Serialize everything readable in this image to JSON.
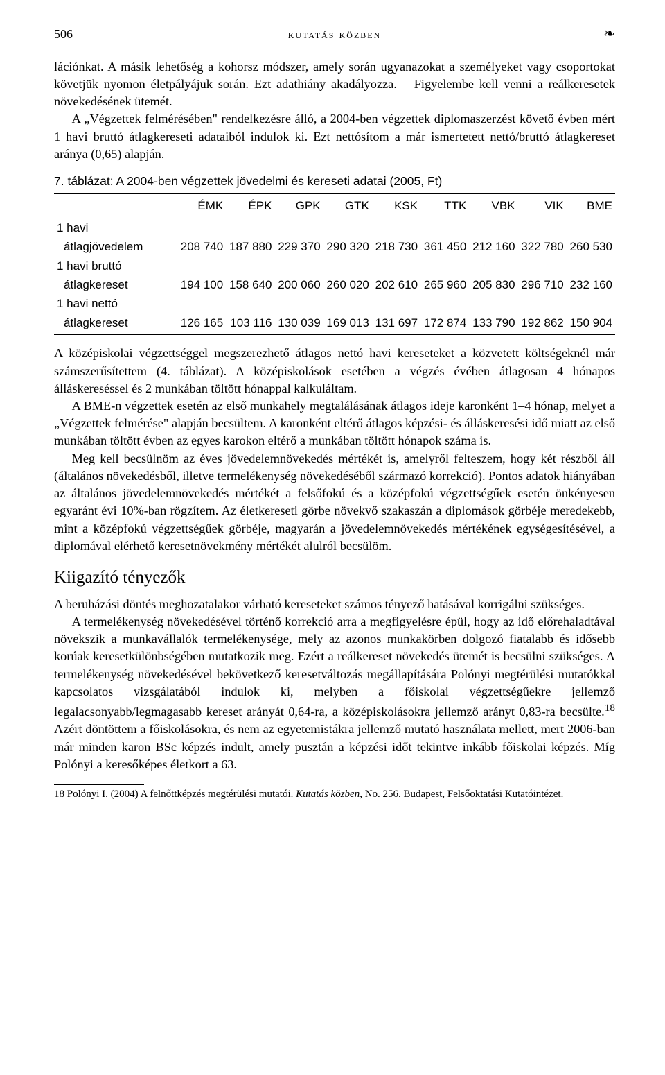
{
  "header": {
    "page_number": "506",
    "running_head": "kutatás közben",
    "ornament": "❧"
  },
  "para1": "lációnkat. A másik lehetőség a kohorsz módszer, amely során ugyanazokat a személyeket vagy csoportokat követjük nyomon életpályájuk során. Ezt adathiány akadályozza. – Figyelembe kell venni a reálkeresetek növekedésének ütemét.",
  "para2": "A „Végzettek felmérésében\" rendelkezésre álló, a 2004-ben végzettek diplomaszerzést követő évben mért 1 havi bruttó átlagkereseti adataiból indulok ki. Ezt nettósítom a már ismertetett nettó/bruttó átlagkereset aránya (0,65) alapján.",
  "table": {
    "caption": "7. táblázat: A 2004-ben végzettek jövedelmi és kereseti adatai (2005, Ft)",
    "columns": [
      "",
      "ÉMK",
      "ÉPK",
      "GPK",
      "GTK",
      "KSK",
      "TTK",
      "VBK",
      "VIK",
      "BME"
    ],
    "rows": [
      {
        "label_top": "1 havi",
        "label_sub": "átlagjövedelem",
        "cells": [
          "208 740",
          "187 880",
          "229 370",
          "290 320",
          "218 730",
          "361 450",
          "212 160",
          "322 780",
          "260 530"
        ]
      },
      {
        "label_top": "1 havi bruttó",
        "label_sub": "átlagkereset",
        "cells": [
          "194 100",
          "158 640",
          "200 060",
          "260 020",
          "202 610",
          "265 960",
          "205 830",
          "296 710",
          "232 160"
        ]
      },
      {
        "label_top": "1 havi nettó",
        "label_sub": "átlagkereset",
        "cells": [
          "126 165",
          "103 116",
          "130 039",
          "169 013",
          "131 697",
          "172 874",
          "133 790",
          "192 862",
          "150 904"
        ]
      }
    ]
  },
  "para3": "A középiskolai végzettséggel megszerezhető átlagos nettó havi kereseteket a közvetett költségeknél már számszerűsítettem (4. táblázat). A középiskolások esetében a végzés évében átlagosan 4 hónapos álláskereséssel és 2 munkában töltött hónappal kalkuláltam.",
  "para4": "A BME-n végzettek esetén az első munkahely megtalálásának átlagos ideje karonként 1–4 hónap, melyet a „Végzettek felmérése\" alapján becsültem. A karonként eltérő átlagos képzési- és álláskeresési idő miatt az első munkában töltött évben az egyes karokon eltérő a munkában töltött hónapok száma is.",
  "para5": "Meg kell becsülnöm az éves jövedelemnövekedés mértékét is, amelyről felteszem, hogy két részből áll (általános növekedésből, illetve termelékenység növekedéséből származó korrekció). Pontos adatok hiányában az általános jövedelemnövekedés mértékét a felsőfokú és a középfokú végzettségűek esetén önkényesen egyaránt évi 10%-ban rögzítem. Az életkereseti görbe növekvő szakaszán a diplomások görbéje meredekebb, mint a középfokú végzettségűek görbéje, magyarán a jövedelemnövekedés mértékének egységesítésével, a diplomával elérhető keresetnövekmény mértékét alulról becsülöm.",
  "section_heading": "Kiigazító tényezők",
  "para6": "A beruházási döntés meghozatalakor várható kereseteket számos tényező hatásával korrigálni szükséges.",
  "para7_html": "A termelékenység növekedésével történő korrekció arra a megfigyelésre épül, hogy az idő előrehaladtával növekszik a munkavállalók termelékenysége, mely az azonos munkakörben dolgozó fiatalabb és idősebb korúak keresetkülönbségében mutatkozik meg. Ezért a reálkereset növekedés ütemét is becsülni szükséges. A termelékenység növekedésével bekövetkező keresetváltozás megállapítására Polónyi megtérülési mutatókkal kapcsolatos vizsgálatából indulok ki, melyben a főiskolai végzettségűekre jellemző legalacsonyabb/legmagasabb kereset arányát 0,64-ra, a középiskolásokra jellemző arányt 0,83-ra becsülte.",
  "footnote_marker": "18",
  "para7_tail": " Azért döntöttem a főiskolásokra, és nem az egyetemistákra jellemző mutató használata mellett, mert 2006-ban már minden karon BSc képzés indult, amely pusztán a képzési időt tekintve inkább főiskolai képzés. Míg Polónyi a keresőképes életkort a 63.",
  "footnote": {
    "num": "18",
    "text_pre": "Polónyi I. (2004) A felnőttképzés megtérülési mutatói. ",
    "text_ital": "Kutatás közben,",
    "text_post": " No. 256. Budapest, Felsőoktatási Kutatóintézet."
  }
}
